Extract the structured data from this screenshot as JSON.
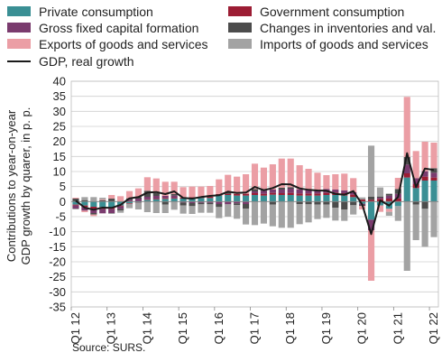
{
  "source": "Source: SURS.",
  "legend": [
    {
      "label": "Private consumption",
      "color": "#3a8f94"
    },
    {
      "label": "Government consumption",
      "color": "#9c1d34"
    },
    {
      "label": "Gross fixed capital formation",
      "color": "#7a3b6e"
    },
    {
      "label": "Changes in inventories and val.",
      "color": "#4c4c4c"
    },
    {
      "label": "Exports of goods and services",
      "color": "#eb9ea5"
    },
    {
      "label": "Imports of goods and services",
      "color": "#a3a3a3"
    },
    {
      "label": "GDP, real growth",
      "color": "#1a1a1a"
    }
  ],
  "chart_data": {
    "type": "bar",
    "stacked": true,
    "ylabel": "Contributions to year-on-year GDP growth by quarer, in p. p.",
    "ylim": [
      -35,
      40
    ],
    "yticks": [
      -35,
      -30,
      -25,
      -20,
      -15,
      -10,
      -5,
      0,
      5,
      10,
      15,
      20,
      25,
      30,
      35,
      40
    ],
    "xtick_labels": [
      "Q1 12",
      "Q1 13",
      "Q1 14",
      "Q1 15",
      "Q1 16",
      "Q1 17",
      "Q1 18",
      "Q1 19",
      "Q1 20",
      "Q1 21",
      "Q1 22"
    ],
    "grid": true,
    "categories": [
      "Q1 12",
      "Q2 12",
      "Q3 12",
      "Q4 12",
      "Q1 13",
      "Q2 13",
      "Q3 13",
      "Q4 13",
      "Q1 14",
      "Q2 14",
      "Q3 14",
      "Q4 14",
      "Q1 15",
      "Q2 15",
      "Q3 15",
      "Q4 15",
      "Q1 16",
      "Q2 16",
      "Q3 16",
      "Q4 16",
      "Q1 17",
      "Q2 17",
      "Q3 17",
      "Q4 17",
      "Q1 18",
      "Q2 18",
      "Q3 18",
      "Q4 18",
      "Q1 19",
      "Q2 19",
      "Q3 19",
      "Q4 19",
      "Q1 20",
      "Q2 20",
      "Q3 20",
      "Q4 20",
      "Q1 21",
      "Q2 21",
      "Q3 21",
      "Q4 21",
      "Q1 22"
    ],
    "series": [
      {
        "name": "Private consumption",
        "color": "#3a8f94",
        "values": [
          -1.0,
          -1.3,
          -1.7,
          -1.8,
          -2.0,
          -1.3,
          -0.5,
          -0.3,
          0.6,
          0.8,
          0.9,
          1.0,
          1.0,
          1.1,
          1.2,
          1.2,
          2.0,
          2.2,
          2.0,
          2.0,
          2.2,
          2.0,
          2.3,
          2.2,
          2.2,
          2.0,
          2.0,
          2.0,
          2.2,
          2.2,
          2.0,
          1.5,
          -0.7,
          -6.0,
          -1.3,
          -2.4,
          -1.5,
          8.0,
          4.5,
          7.0,
          7.0
        ]
      },
      {
        "name": "Government consumption",
        "color": "#9c1d34",
        "values": [
          -0.3,
          -0.5,
          -0.6,
          -0.7,
          -0.5,
          -0.3,
          -0.2,
          -0.1,
          0.2,
          0.2,
          0.3,
          0.2,
          0.3,
          0.4,
          0.4,
          0.4,
          0.5,
          0.4,
          0.5,
          0.6,
          0.6,
          0.6,
          0.6,
          0.6,
          0.7,
          0.7,
          0.7,
          0.7,
          0.7,
          0.8,
          0.8,
          0.8,
          0.7,
          0.6,
          0.9,
          1.0,
          1.1,
          1.4,
          1.3,
          1.3,
          1.0
        ]
      },
      {
        "name": "Gross fixed capital formation",
        "color": "#7a3b6e",
        "values": [
          -1.0,
          -1.2,
          -1.5,
          -1.4,
          -1.3,
          -0.8,
          0.6,
          1.0,
          0.8,
          0.9,
          0.7,
          0.8,
          -0.3,
          -0.5,
          -0.4,
          -0.4,
          -0.8,
          -0.9,
          -0.6,
          -0.8,
          0.6,
          1.0,
          1.1,
          1.2,
          1.4,
          1.4,
          1.2,
          1.1,
          1.3,
          1.0,
          0.9,
          0.8,
          -0.4,
          -3.5,
          0.4,
          1.0,
          1.5,
          2.9,
          2.0,
          1.8,
          1.6
        ]
      },
      {
        "name": "Changes in inventories and val.",
        "color": "#4c4c4c",
        "values": [
          1.0,
          0.5,
          -0.5,
          0.5,
          1.0,
          -0.5,
          0.5,
          0.5,
          2.0,
          1.0,
          -1.0,
          0.5,
          -1.0,
          -1.0,
          -0.5,
          -0.5,
          -1.0,
          0.5,
          -0.5,
          -1.5,
          0.8,
          0.5,
          -1.0,
          0.6,
          0.5,
          -0.8,
          -0.9,
          -1.0,
          -1.0,
          -2.0,
          -2.6,
          -1.2,
          -0.3,
          1.0,
          0.4,
          0.6,
          1.6,
          2.5,
          -1.0,
          -2.4,
          1.5
        ]
      },
      {
        "name": "Exports of goods and services",
        "color": "#eb9ea5",
        "values": [
          0.3,
          -0.5,
          -0.5,
          0.3,
          1.2,
          1.8,
          2.4,
          2.9,
          4.5,
          4.8,
          4.7,
          4.1,
          3.5,
          3.5,
          3.4,
          3.6,
          4.9,
          5.8,
          5.8,
          6.5,
          8.4,
          7.2,
          8.4,
          9.7,
          9.5,
          8.0,
          7.0,
          5.8,
          4.6,
          5.1,
          5.6,
          4.7,
          -1.2,
          -16.8,
          -2.1,
          -1.0,
          3.7,
          20.0,
          9.0,
          9.8,
          8.5
        ]
      },
      {
        "name": "Imports of goods and services",
        "color": "#a3a3a3",
        "values": [
          -0.3,
          1.0,
          1.5,
          0.5,
          -0.3,
          -0.8,
          -1.5,
          -2.2,
          -3.5,
          -3.8,
          -2.8,
          -2.7,
          -2.7,
          -2.6,
          -2.8,
          -2.8,
          -3.7,
          -4.1,
          -4.6,
          -5.3,
          -7.8,
          -7.3,
          -7.2,
          -8.7,
          -8.7,
          -6.7,
          -6.0,
          -4.8,
          -4.4,
          -4.3,
          -3.8,
          -3.1,
          0.7,
          17.0,
          3.0,
          -1.3,
          -4.9,
          -23.0,
          -11.8,
          -12.6,
          -11.8
        ]
      }
    ],
    "line": {
      "name": "GDP, real growth",
      "values": [
        0.3,
        -2.0,
        -2.7,
        -2.0,
        -2.1,
        -1.1,
        1.1,
        1.5,
        3.0,
        3.2,
        2.5,
        3.4,
        1.2,
        1.0,
        1.5,
        1.9,
        2.1,
        3.3,
        2.9,
        3.0,
        4.9,
        3.8,
        4.5,
        5.8,
        5.7,
        4.4,
        3.9,
        3.7,
        3.6,
        2.6,
        2.3,
        3.5,
        -1.0,
        -10.8,
        0.4,
        -1.3,
        1.5,
        16.1,
        4.8,
        11.0,
        10.5
      ]
    }
  }
}
